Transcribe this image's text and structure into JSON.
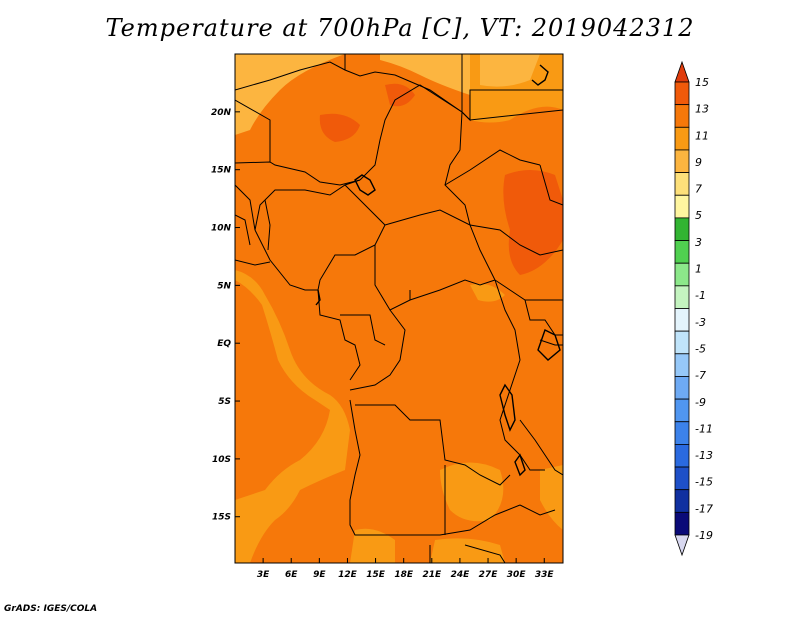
{
  "title": "Temperature at 700hPa [C], VT: 2019042312",
  "credit": "GrADS: IGES/COLA",
  "map": {
    "lat_labels": [
      "20N",
      "15N",
      "10N",
      "5N",
      "EQ",
      "5S",
      "10S",
      "15S"
    ],
    "lat_values": [
      20,
      15,
      10,
      5,
      0,
      -5,
      -10,
      -15
    ],
    "lon_labels": [
      "3E",
      "6E",
      "9E",
      "12E",
      "15E",
      "18E",
      "21E",
      "24E",
      "27E",
      "30E",
      "33E"
    ],
    "lon_values": [
      3,
      6,
      9,
      12,
      15,
      18,
      21,
      24,
      27,
      30,
      33
    ],
    "lon_range": [
      0,
      35
    ],
    "lat_range": [
      -19,
      25
    ]
  },
  "colorbar": {
    "levels": [
      "15",
      "13",
      "11",
      "9",
      "7",
      "5",
      "3",
      "1",
      "-1",
      "-3",
      "-5",
      "-7",
      "-9",
      "-11",
      "-13",
      "-15",
      "-17",
      "-19"
    ],
    "colors": [
      "#d8d8f0",
      "#0a0a78",
      "#1030a0",
      "#1e50c8",
      "#2a6ae0",
      "#3c82ea",
      "#5096f0",
      "#6eaaf4",
      "#96c8f8",
      "#c0e4fa",
      "#e4f4fc",
      "#c4f4c0",
      "#8ce88a",
      "#50d050",
      "#32b432",
      "#fff6a0",
      "#fde07a",
      "#fcb540",
      "#f99a14",
      "#f6780a",
      "#f05a0a",
      "#e03c0c"
    ]
  },
  "colors": {
    "ocean": "#f99a14",
    "land_main": "#f6780a",
    "land_warm": "#f05a0a",
    "land_cool": "#fcb540",
    "border": "#000000"
  }
}
